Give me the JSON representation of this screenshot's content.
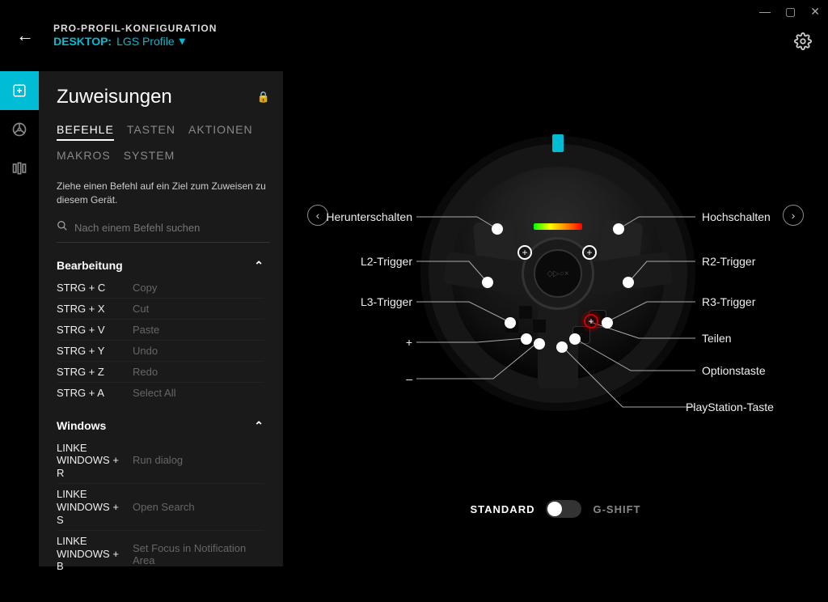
{
  "window": {
    "title": "PRO-PROFIL-KONFIGURATION"
  },
  "profile": {
    "prefix": "DESKTOP:",
    "name": "LGS Profile"
  },
  "sidebar": {
    "title": "Zuweisungen",
    "tabs": [
      "BEFEHLE",
      "TASTEN",
      "AKTIONEN",
      "MAKROS",
      "SYSTEM"
    ],
    "active_tab": 0,
    "hint": "Ziehe einen Befehl auf ein Ziel zum Zuweisen zu diesem Gerät.",
    "search_placeholder": "Nach einem Befehl suchen",
    "sections": [
      {
        "title": "Bearbeitung",
        "rows": [
          {
            "k": "STRG + C",
            "n": "Copy"
          },
          {
            "k": "STRG + X",
            "n": "Cut"
          },
          {
            "k": "STRG + V",
            "n": "Paste"
          },
          {
            "k": "STRG + Y",
            "n": "Undo"
          },
          {
            "k": "STRG + Z",
            "n": "Redo"
          },
          {
            "k": "STRG + A",
            "n": "Select All"
          }
        ]
      },
      {
        "title": "Windows",
        "rows": [
          {
            "k": "LINKE WINDOWS + R",
            "n": "Run dialog"
          },
          {
            "k": "LINKE WINDOWS + S",
            "n": "Open Search"
          },
          {
            "k": "LINKE WINDOWS + B",
            "n": "Set Focus in Notification Area"
          }
        ]
      }
    ]
  },
  "wheel": {
    "labels_left": [
      "Herunterschalten",
      "L2-Trigger",
      "L3-Trigger",
      "+",
      "–"
    ],
    "labels_right": [
      "Hochschalten",
      "R2-Trigger",
      "R3-Trigger",
      "Teilen",
      "Optionstaste",
      "PlayStation-Taste"
    ],
    "accent": "#00bcd4"
  },
  "mode": {
    "left": "STANDARD",
    "right": "G-SHIFT",
    "active": "left"
  }
}
